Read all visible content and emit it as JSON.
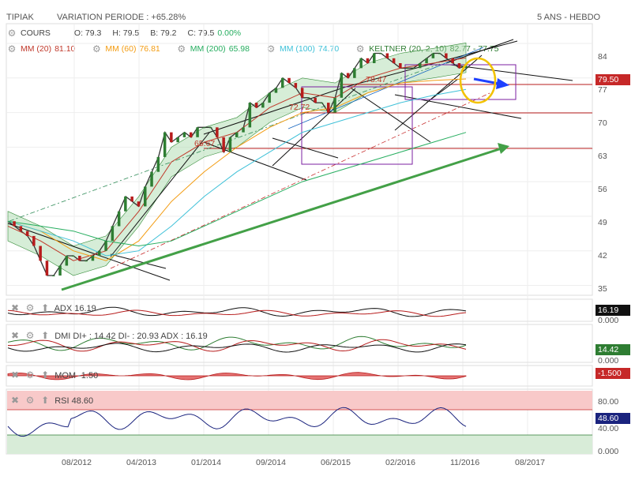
{
  "header": {
    "symbol": "TIPIAK",
    "variation": "VARIATION PERIODE : +65.28%",
    "period": "5 ANS - HEBDO"
  },
  "legend": {
    "cours": {
      "name": "COURS",
      "o": "O: 79.3",
      "h": "H: 79.5",
      "b": "B: 79.2",
      "c": "C: 79.5",
      "pct": "0.00%"
    },
    "indicators": [
      {
        "label": "MM (20)",
        "value": "81.10",
        "color": "#c0392b"
      },
      {
        "label": "MM (60)",
        "value": "76.81",
        "color": "#f39c12"
      },
      {
        "label": "MM (200)",
        "value": "65.98",
        "color": "#27ae60"
      },
      {
        "label": "MM (100)",
        "value": "74.70",
        "color": "#3fc1d8"
      },
      {
        "label": "KELTNER (20, 2, 10)",
        "value": "82.77 - 77.75",
        "color": "#2e7d32"
      }
    ]
  },
  "price_badge": "79.50",
  "panels": {
    "adx": {
      "label": "ADX",
      "value": "16.19",
      "badge": "16.19",
      "zero": "0.000"
    },
    "dmi": {
      "label": "DMI DI+ : 14.42 DI- : 20.93 ADX : 16.19",
      "badge": "14.42",
      "zero": "0.000"
    },
    "mom": {
      "label": "MOM",
      "value": "-1.50",
      "badge": "-1.500"
    },
    "rsi": {
      "label": "RSI",
      "value": "48.60",
      "badge": "48.60",
      "ticks": [
        "80.00",
        "40.00",
        "0.000"
      ]
    }
  },
  "annotations": [
    "65.67",
    "72.72",
    "78.47"
  ],
  "chart_data": {
    "type": "line",
    "title": "",
    "x_ticks": [
      "08/2012",
      "04/2013",
      "01/2014",
      "09/2014",
      "06/2015",
      "02/2016",
      "11/2016",
      "08/2017"
    ],
    "y_ticks": [
      35,
      42,
      49,
      56,
      63,
      70,
      77,
      84
    ],
    "ylim": [
      33,
      88
    ],
    "grid": true,
    "series": [
      {
        "name": "COURS",
        "color": "#333333",
        "x": [
          0,
          4,
          8,
          12,
          16,
          20,
          24,
          28,
          32,
          36,
          40,
          44,
          48,
          52,
          56,
          60,
          64,
          68,
          72,
          76,
          80,
          84,
          88,
          92,
          96,
          100,
          104,
          108,
          112,
          116,
          120,
          124,
          128,
          132,
          136,
          140,
          144,
          148,
          152,
          156,
          160,
          164,
          168,
          172,
          176,
          180,
          184,
          188,
          192,
          196,
          200,
          204,
          208,
          212,
          216,
          220,
          224,
          228,
          232,
          236,
          240,
          244,
          248,
          252,
          256,
          260,
          264,
          268,
          272,
          276,
          280
        ],
        "values": [
          48,
          47,
          46,
          45,
          43,
          40,
          37,
          37,
          39,
          41,
          41,
          40,
          40,
          41,
          42,
          44,
          47,
          50,
          53,
          52,
          51,
          55,
          58,
          61,
          66,
          64,
          65,
          66,
          65,
          67,
          67,
          67,
          65,
          62,
          65,
          66,
          67,
          72,
          71,
          72,
          74,
          75,
          77,
          76,
          75,
          73,
          73,
          72,
          72,
          70,
          73,
          78,
          77,
          79,
          81,
          80,
          82,
          82,
          81,
          80,
          79,
          79,
          79,
          80,
          81,
          82,
          82,
          81,
          80,
          79,
          79.5
        ]
      },
      {
        "name": "MM (20)",
        "color": "#c0392b",
        "x": [
          0,
          20,
          40,
          60,
          80,
          100,
          120,
          140,
          160,
          180,
          200,
          220,
          240,
          260,
          280
        ],
        "values": [
          47,
          44,
          40,
          42,
          50,
          60,
          64,
          66,
          71,
          74,
          73,
          77,
          79,
          80,
          81.1
        ]
      },
      {
        "name": "MM (60)",
        "color": "#f39c12",
        "x": [
          0,
          20,
          40,
          60,
          80,
          100,
          120,
          140,
          160,
          180,
          200,
          220,
          240,
          260,
          280
        ],
        "values": [
          48,
          46,
          42,
          40,
          44,
          52,
          58,
          63,
          67,
          70,
          71,
          74,
          76,
          76.5,
          76.81
        ]
      },
      {
        "name": "MM (100)",
        "color": "#3fc1d8",
        "x": [
          0,
          20,
          40,
          60,
          80,
          100,
          120,
          140,
          160,
          180,
          200,
          220,
          240,
          260,
          280
        ],
        "values": [
          48,
          46,
          44,
          41,
          42,
          47,
          53,
          58,
          62,
          66,
          68,
          70,
          72,
          73.5,
          74.7
        ]
      },
      {
        "name": "MM (200)",
        "color": "#27ae60",
        "x": [
          0,
          20,
          40,
          60,
          80,
          100,
          120,
          140,
          160,
          180,
          200,
          220,
          240,
          260,
          280
        ],
        "values": [
          48,
          47,
          46,
          44,
          43,
          44,
          47,
          50,
          53,
          56,
          58,
          60,
          62,
          64,
          65.98
        ]
      }
    ]
  }
}
